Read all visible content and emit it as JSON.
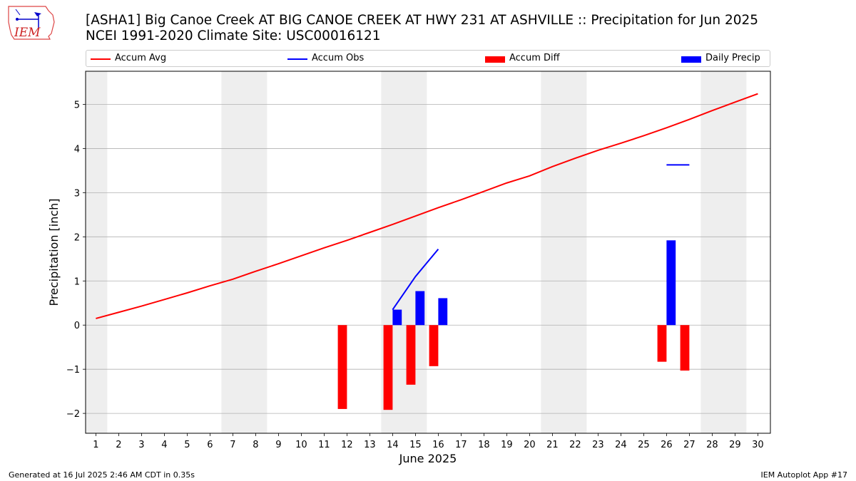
{
  "title": "[ASHA1] Big Canoe Creek  AT BIG CANOE CREEK AT HWY 231 AT ASHVILLE :: Precipitation for Jun 2025",
  "subtitle": "NCEI 1991-2020 Climate Site: USC00016121",
  "logo_text": "IEM",
  "footer_left": "Generated at 16 Jul 2025 2:46 AM CDT in 0.35s",
  "footer_right": "IEM Autoplot App #17",
  "colors": {
    "avg": "#ff0000",
    "obs": "#0000ff",
    "diff": "#ff0000",
    "precip": "#0000ff",
    "weekend": "#eeeeee",
    "grid": "#b0b0b0"
  },
  "chart_data": {
    "type": "bar",
    "xlabel": "June 2025",
    "ylabel": "Precipitation [inch]",
    "ylim": [
      -2.45,
      5.75
    ],
    "xlim": [
      0.55,
      30.55
    ],
    "yticks": [
      -2,
      -1,
      0,
      1,
      2,
      3,
      4,
      5
    ],
    "ytick_labels": [
      "−2",
      "−1",
      "0",
      "1",
      "2",
      "3",
      "4",
      "5"
    ],
    "x": [
      1,
      2,
      3,
      4,
      5,
      6,
      7,
      8,
      9,
      10,
      11,
      12,
      13,
      14,
      15,
      16,
      17,
      18,
      19,
      20,
      21,
      22,
      23,
      24,
      25,
      26,
      27,
      28,
      29,
      30
    ],
    "xtick_labels": [
      "1",
      "2",
      "3",
      "4",
      "5",
      "6",
      "7",
      "8",
      "9",
      "10",
      "11",
      "12",
      "13",
      "14",
      "15",
      "16",
      "17",
      "18",
      "19",
      "20",
      "21",
      "22",
      "23",
      "24",
      "25",
      "26",
      "27",
      "28",
      "29",
      "30"
    ],
    "grid": "horizontal",
    "legend_placement": "top",
    "legend": [
      "Accum Avg",
      "Accum Obs",
      "Accum Diff",
      "Daily Precip"
    ],
    "weekend_bands": [
      [
        0.5,
        1.5
      ],
      [
        6.5,
        8.5
      ],
      [
        13.5,
        15.5
      ],
      [
        20.5,
        22.5
      ],
      [
        27.5,
        29.5
      ]
    ],
    "series": [
      {
        "name": "Accum Avg",
        "kind": "line",
        "points": [
          [
            1,
            0.15
          ],
          [
            2,
            0.29
          ],
          [
            3,
            0.43
          ],
          [
            4,
            0.58
          ],
          [
            5,
            0.73
          ],
          [
            6,
            0.89
          ],
          [
            7,
            1.04
          ],
          [
            8,
            1.22
          ],
          [
            9,
            1.39
          ],
          [
            10,
            1.57
          ],
          [
            11,
            1.75
          ],
          [
            12,
            1.92
          ],
          [
            13,
            2.1
          ],
          [
            14,
            2.28
          ],
          [
            15,
            2.47
          ],
          [
            16,
            2.66
          ],
          [
            17,
            2.84
          ],
          [
            18,
            3.03
          ],
          [
            19,
            3.22
          ],
          [
            20,
            3.38
          ],
          [
            21,
            3.59
          ],
          [
            22,
            3.78
          ],
          [
            23,
            3.96
          ],
          [
            24,
            4.12
          ],
          [
            25,
            4.29
          ],
          [
            26,
            4.47
          ],
          [
            27,
            4.66
          ],
          [
            28,
            4.86
          ],
          [
            29,
            5.05
          ],
          [
            30,
            5.24
          ]
        ]
      },
      {
        "name": "Accum Obs",
        "kind": "line",
        "segments": [
          [
            [
              14,
              0.35
            ],
            [
              15,
              1.1
            ],
            [
              16,
              1.72
            ]
          ],
          [
            [
              26,
              3.63
            ],
            [
              27,
              3.63
            ]
          ]
        ]
      },
      {
        "name": "Accum Diff",
        "kind": "bar",
        "bars": [
          [
            12,
            -1.9
          ],
          [
            14,
            -1.92
          ],
          [
            15,
            -1.35
          ],
          [
            16,
            -0.93
          ],
          [
            26,
            -0.83
          ],
          [
            27,
            -1.03
          ]
        ]
      },
      {
        "name": "Daily Precip",
        "kind": "bar",
        "bars": [
          [
            14,
            0.35
          ],
          [
            15,
            0.77
          ],
          [
            16,
            0.61
          ],
          [
            26,
            1.92
          ]
        ]
      }
    ]
  }
}
